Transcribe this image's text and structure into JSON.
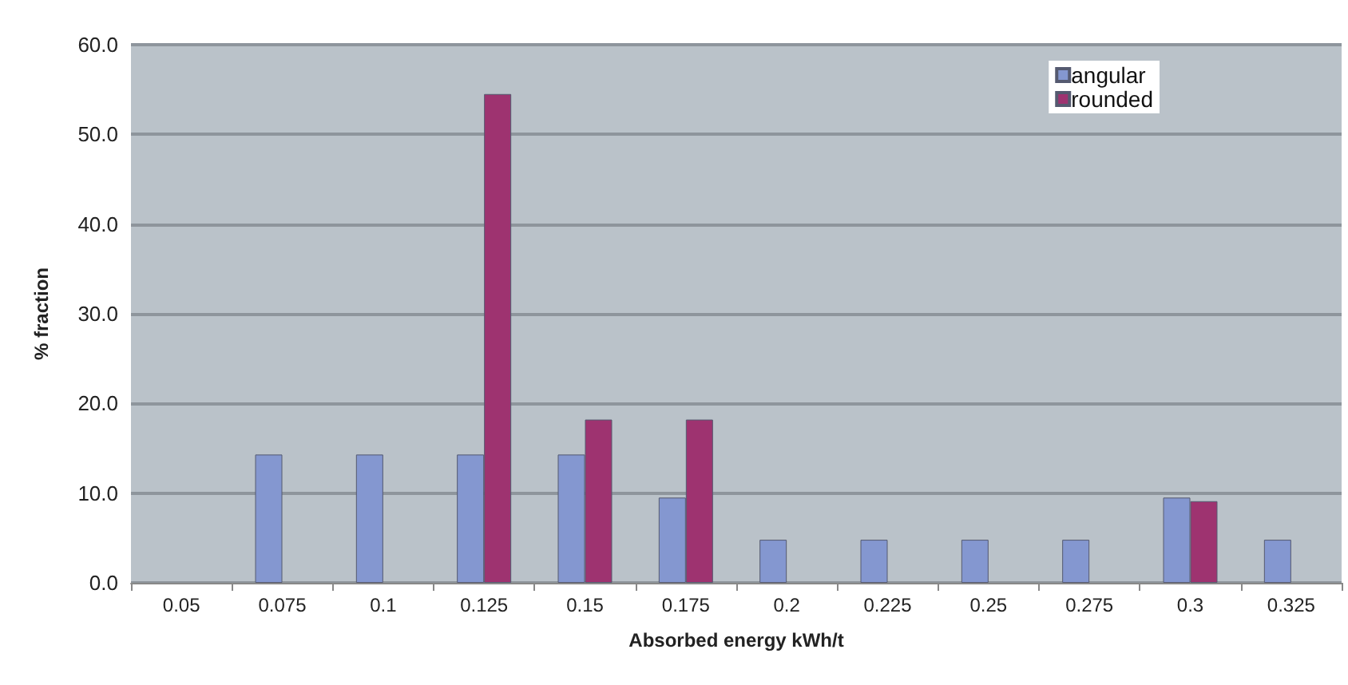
{
  "chart_data": {
    "type": "bar",
    "xlabel": "Absorbed energy kWh/t",
    "ylabel": "% fraction",
    "categories": [
      "0.05",
      "0.075",
      "0.1",
      "0.125",
      "0.15",
      "0.175",
      "0.2",
      "0.225",
      "0.25",
      "0.275",
      "0.3",
      "0.325"
    ],
    "series": [
      {
        "name": "angular",
        "color": "#8497d0",
        "values": [
          null,
          14.3,
          14.3,
          14.3,
          14.3,
          9.5,
          4.8,
          4.8,
          4.8,
          4.8,
          9.5,
          4.8
        ]
      },
      {
        "name": "rounded",
        "color": "#9e3370",
        "values": [
          null,
          null,
          null,
          54.5,
          18.2,
          18.2,
          null,
          null,
          null,
          null,
          9.1,
          null
        ]
      }
    ],
    "ylim": [
      0,
      60
    ],
    "yticks": [
      {
        "value": 0,
        "label": "0.0"
      },
      {
        "value": 10,
        "label": "10.0"
      },
      {
        "value": 20,
        "label": "20.0"
      },
      {
        "value": 30,
        "label": "30.0"
      },
      {
        "value": 40,
        "label": "40.0"
      },
      {
        "value": 50,
        "label": "50.0"
      },
      {
        "value": 60,
        "label": "60.0"
      }
    ],
    "grid": "y",
    "legend": "top right"
  }
}
